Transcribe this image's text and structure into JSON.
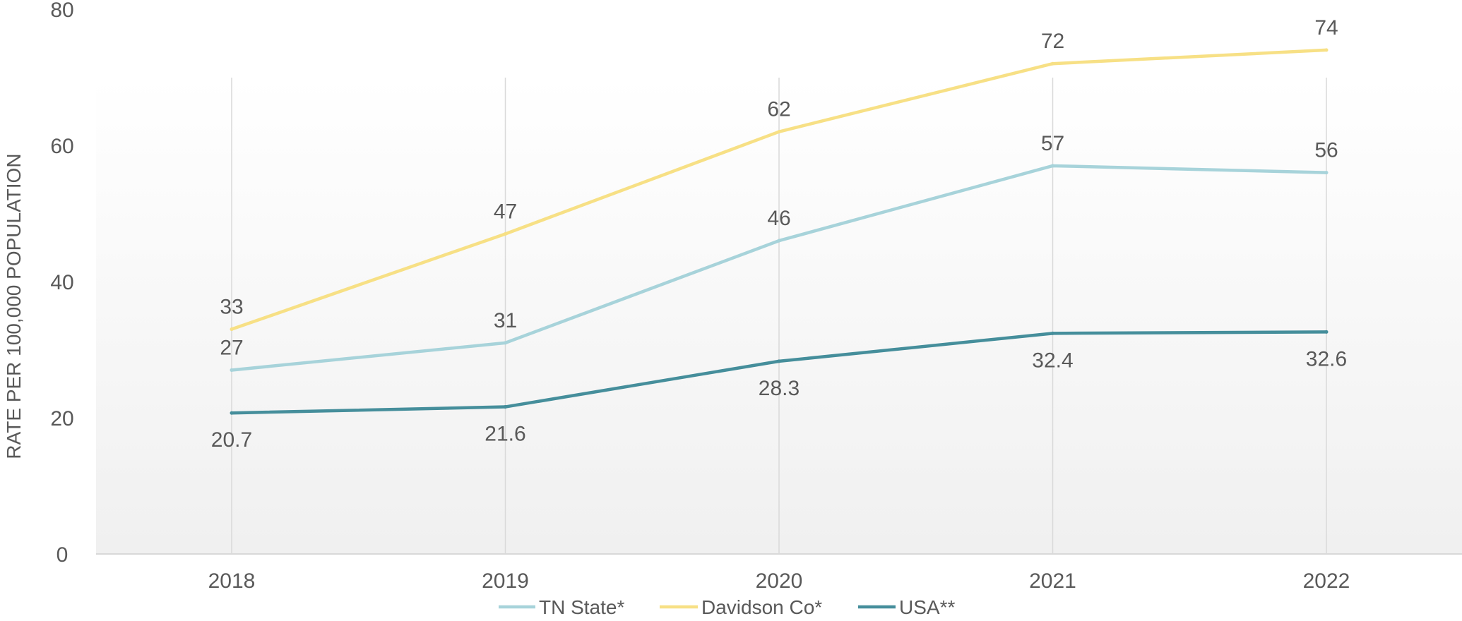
{
  "chart_data": {
    "type": "line",
    "title": "",
    "xlabel": "",
    "ylabel": "RATE PER 100,000 POPULATION",
    "ylim": [
      0,
      80
    ],
    "yticks": [
      0,
      20,
      40,
      60,
      80
    ],
    "categories": [
      "2018",
      "2019",
      "2020",
      "2021",
      "2022"
    ],
    "grid": "vertical",
    "legend_position": "bottom",
    "series": [
      {
        "name": "TN State*",
        "color": "#A7D3DA",
        "values": [
          27,
          31,
          46,
          57,
          56
        ],
        "labels": [
          "27",
          "31",
          "46",
          "57",
          "56"
        ],
        "label_position": "above"
      },
      {
        "name": "Davidson Co*",
        "color": "#F7E085",
        "values": [
          33,
          47,
          62,
          72,
          74
        ],
        "labels": [
          "33",
          "47",
          "62",
          "72",
          "74"
        ],
        "label_position": "above"
      },
      {
        "name": "USA**",
        "color": "#458E9B",
        "values": [
          20.7,
          21.6,
          28.3,
          32.4,
          32.6
        ],
        "labels": [
          "20.7",
          "21.6",
          "28.3",
          "32.4",
          "32.6"
        ],
        "label_position": "below"
      }
    ]
  }
}
